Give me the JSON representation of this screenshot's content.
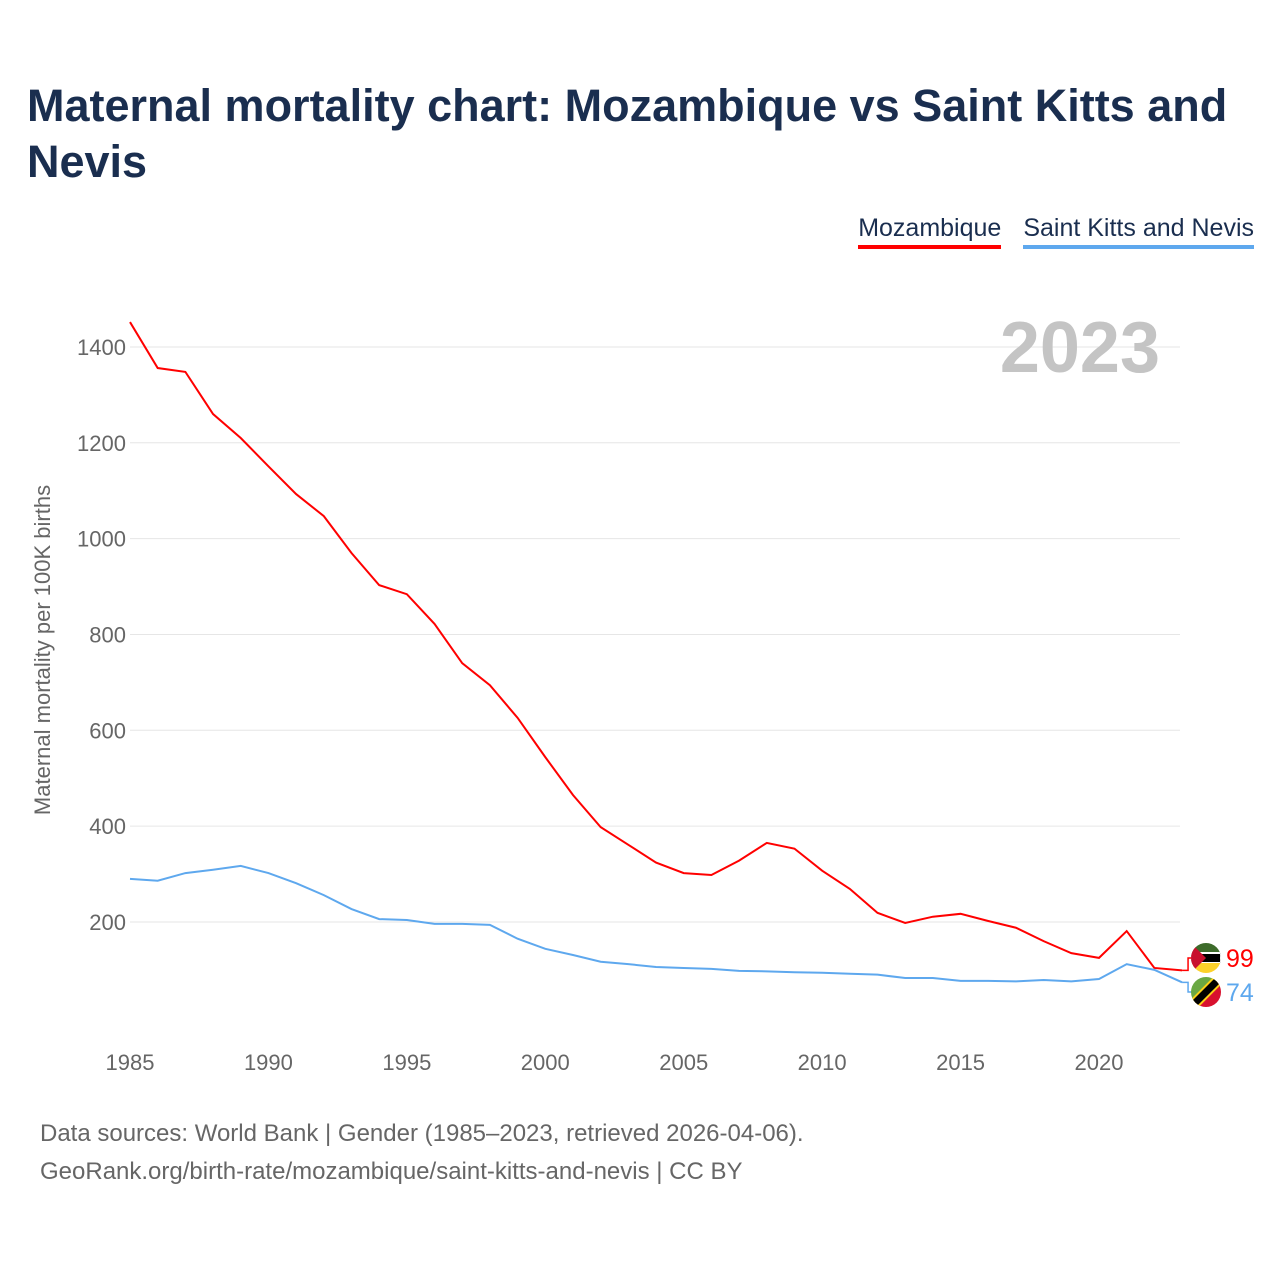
{
  "chart_data": {
    "type": "line",
    "title": "Maternal mortality chart: Mozambique vs Saint Kitts and Nevis",
    "xlabel": "",
    "ylabel": "Maternal mortality per 100K births",
    "xlim": [
      1985,
      2023
    ],
    "ylim": [
      0,
      1450
    ],
    "x_ticks": [
      1985,
      1990,
      1995,
      2000,
      2005,
      2010,
      2015,
      2020
    ],
    "y_ticks": [
      200,
      400,
      600,
      800,
      1000,
      1200,
      1400
    ],
    "grid": true,
    "legend_placement": "top-right",
    "year_label": "2023",
    "x": [
      1985,
      1986,
      1987,
      1988,
      1989,
      1990,
      1991,
      1992,
      1993,
      1994,
      1995,
      1996,
      1997,
      1998,
      1999,
      2000,
      2001,
      2002,
      2003,
      2004,
      2005,
      2006,
      2007,
      2008,
      2009,
      2010,
      2011,
      2012,
      2013,
      2014,
      2015,
      2016,
      2017,
      2018,
      2019,
      2020,
      2021,
      2022,
      2023
    ],
    "series": [
      {
        "name": "Mozambique",
        "color": "#ff0000",
        "end_label": "99",
        "values": [
          1452,
          1356,
          1348,
          1260,
          1210,
          1151,
          1093,
          1047,
          970,
          903,
          884,
          822,
          740,
          694,
          626,
          544,
          465,
          398,
          361,
          324,
          302,
          298,
          328,
          365,
          353,
          307,
          269,
          219,
          198,
          211,
          217,
          202,
          188,
          160,
          135,
          125,
          181,
          104,
          99
        ]
      },
      {
        "name": "Saint Kitts and Nevis",
        "color": "#5ea8ee",
        "end_label": "74",
        "values": [
          290,
          286,
          302,
          309,
          317,
          302,
          281,
          256,
          227,
          206,
          204,
          196,
          196,
          194,
          165,
          144,
          131,
          117,
          112,
          106,
          104,
          102,
          98,
          97,
          95,
          94,
          92,
          90,
          83,
          83,
          77,
          77,
          76,
          79,
          76,
          81,
          112,
          100,
          74
        ]
      }
    ]
  },
  "footer": {
    "line1": "Data sources: World Bank | Gender (1985–2023, retrieved 2026-04-06).",
    "line2": "GeoRank.org/birth-rate/mozambique/saint-kitts-and-nevis | CC BY"
  }
}
